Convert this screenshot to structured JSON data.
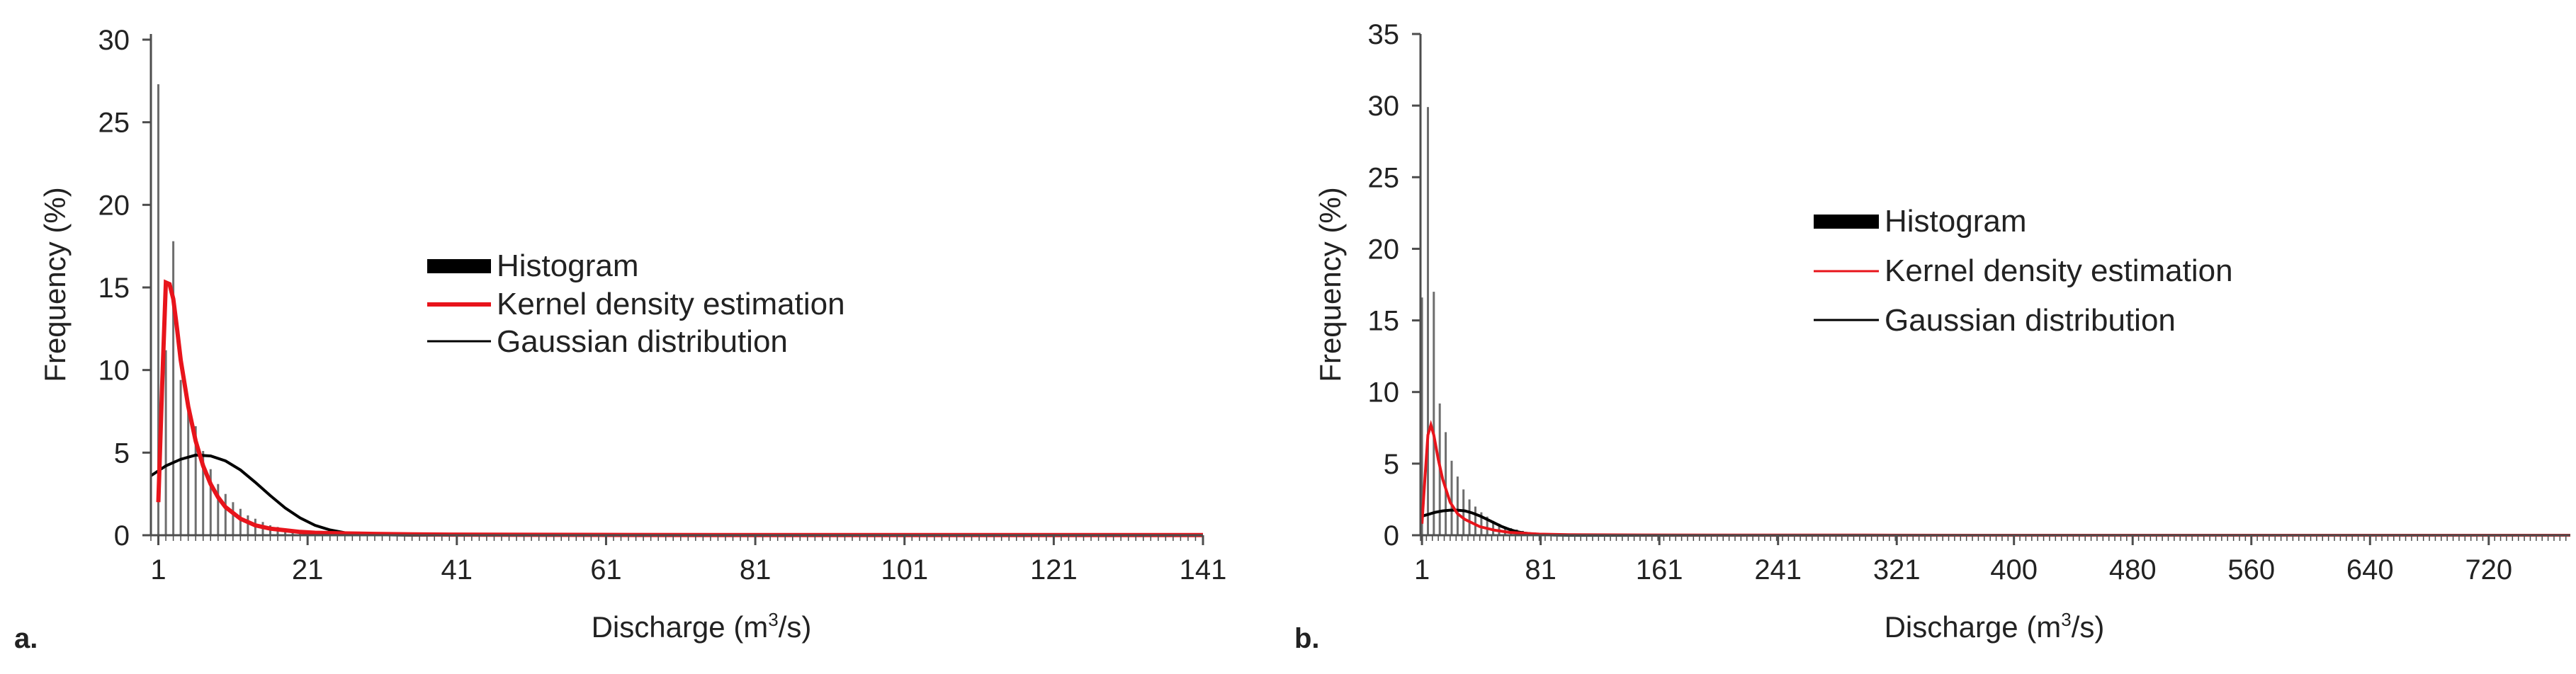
{
  "chart_data": [
    {
      "type": "bar",
      "panel_label": "a.",
      "xlabel": "Discharge (m³/s)",
      "xlabel_main": "Discharge (m",
      "xlabel_sup": "3",
      "xlabel_tail": "/s)",
      "ylabel": "Frequency (%)",
      "xlim": [
        0,
        141
      ],
      "ylim": [
        0,
        30
      ],
      "yticks": [
        "0",
        "5",
        "10",
        "15",
        "20",
        "25",
        "30"
      ],
      "xticks": [
        {
          "value": 1,
          "label": "1"
        },
        {
          "value": 21,
          "label": "21"
        },
        {
          "value": 41,
          "label": "41"
        },
        {
          "value": 61,
          "label": "61"
        },
        {
          "value": 81,
          "label": "81"
        },
        {
          "value": 101,
          "label": "101"
        },
        {
          "value": 121,
          "label": "121"
        },
        {
          "value": 141,
          "label": "141"
        }
      ],
      "grid": false,
      "legend_position": "center",
      "legend": [
        {
          "label": "Histogram",
          "style": "bar",
          "color": "#000000"
        },
        {
          "label": "Kernel density estimation",
          "style": "line",
          "color": "#e8141b"
        },
        {
          "label": "Gaussian distribution",
          "style": "line",
          "color": "#000000"
        }
      ],
      "histogram": {
        "bin_width": 1,
        "x": [
          1,
          2,
          3,
          4,
          5,
          6,
          7,
          8,
          9,
          10,
          11,
          12,
          13,
          14,
          15,
          16,
          17,
          18,
          19,
          20,
          21,
          22,
          23,
          24,
          25,
          26,
          27,
          28,
          29,
          30
        ],
        "values": [
          27.3,
          11.2,
          17.8,
          9.4,
          7.9,
          6.6,
          5.1,
          4.0,
          3.1,
          2.5,
          2.0,
          1.6,
          1.2,
          1.0,
          0.8,
          0.6,
          0.5,
          0.4,
          0.3,
          0.3,
          0.2,
          0.2,
          0.2,
          0.1,
          0.1,
          0.1,
          0.1,
          0.1,
          0.1,
          0.1
        ]
      },
      "series": [
        {
          "name": "Kernel density estimation",
          "color": "#e8141b",
          "x": [
            1,
            1.5,
            2,
            2.5,
            3,
            3.5,
            4,
            5,
            6,
            7,
            8,
            9,
            10,
            12,
            14,
            16,
            18,
            20,
            22,
            25,
            30,
            35,
            40,
            60,
            80,
            100,
            120,
            141
          ],
          "y": [
            2.0,
            9.0,
            15.3,
            15.2,
            14.3,
            12.5,
            10.6,
            7.8,
            5.7,
            4.2,
            3.1,
            2.3,
            1.7,
            1.0,
            0.6,
            0.4,
            0.3,
            0.2,
            0.15,
            0.12,
            0.08,
            0.05,
            0.04,
            0.02,
            0.01,
            0.01,
            0.01,
            0.01
          ]
        },
        {
          "name": "Gaussian distribution",
          "color": "#000000",
          "x": [
            0,
            2,
            4,
            6,
            8,
            10,
            12,
            14,
            16,
            18,
            20,
            22,
            24,
            26,
            30,
            35,
            40,
            60,
            80,
            100,
            120,
            141
          ],
          "y": [
            3.6,
            4.2,
            4.6,
            4.85,
            4.8,
            4.5,
            3.95,
            3.2,
            2.4,
            1.65,
            1.05,
            0.6,
            0.32,
            0.15,
            0.03,
            0.0,
            0.0,
            0.0,
            0.0,
            0.0,
            0.0,
            0.0
          ]
        }
      ]
    },
    {
      "type": "bar",
      "panel_label": "b.",
      "xlabel": "Discharge (m³/s)",
      "xlabel_main": "Discharge (m",
      "xlabel_sup": "3",
      "xlabel_tail": "/s)",
      "ylabel": "Frequency (%)",
      "xlim": [
        0,
        775
      ],
      "ylim": [
        0,
        35
      ],
      "yticks": [
        "0",
        "5",
        "10",
        "15",
        "20",
        "25",
        "30",
        "35"
      ],
      "xticks": [
        {
          "value": 1,
          "label": "1"
        },
        {
          "value": 81,
          "label": "81"
        },
        {
          "value": 161,
          "label": "161"
        },
        {
          "value": 241,
          "label": "241"
        },
        {
          "value": 321,
          "label": "321"
        },
        {
          "value": 400,
          "label": "400"
        },
        {
          "value": 480,
          "label": "480"
        },
        {
          "value": 560,
          "label": "560"
        },
        {
          "value": 640,
          "label": "640"
        },
        {
          "value": 720,
          "label": "720"
        }
      ],
      "grid": false,
      "legend_position": "upper-center",
      "legend": [
        {
          "label": "Histogram",
          "style": "bar",
          "color": "#000000"
        },
        {
          "label": "Kernel density estimation",
          "style": "line",
          "color": "#e8141b"
        },
        {
          "label": "Gaussian distribution",
          "style": "line",
          "color": "#000000"
        }
      ],
      "histogram": {
        "bin_width": 4,
        "x": [
          1,
          5,
          9,
          13,
          17,
          21,
          25,
          29,
          33,
          37,
          41,
          45,
          49,
          53,
          57,
          61,
          65,
          69,
          73,
          77,
          81,
          85,
          89,
          93,
          97
        ],
        "values": [
          16.6,
          29.9,
          17.0,
          9.2,
          7.2,
          5.2,
          4.1,
          3.2,
          2.5,
          2.0,
          1.6,
          1.3,
          1.0,
          0.8,
          0.6,
          0.5,
          0.4,
          0.3,
          0.2,
          0.2,
          0.1,
          0.1,
          0.1,
          0.1,
          0.1
        ]
      },
      "series": [
        {
          "name": "Kernel density estimation",
          "color": "#e8141b",
          "x": [
            1,
            3,
            5,
            7,
            9,
            12,
            15,
            20,
            25,
            30,
            40,
            50,
            60,
            80,
            100,
            150,
            200,
            300,
            400,
            500,
            600,
            700,
            775
          ],
          "y": [
            0.8,
            4.0,
            7.0,
            7.7,
            7.0,
            5.3,
            3.9,
            2.3,
            1.5,
            1.1,
            0.6,
            0.35,
            0.2,
            0.08,
            0.04,
            0.02,
            0.01,
            0.01,
            0.0,
            0.0,
            0.0,
            0.0,
            0.0
          ]
        },
        {
          "name": "Gaussian distribution",
          "color": "#000000",
          "x": [
            0,
            5,
            10,
            15,
            20,
            25,
            30,
            35,
            40,
            45,
            50,
            55,
            60,
            65,
            70,
            80,
            90,
            100,
            150,
            300,
            500,
            775
          ],
          "y": [
            1.3,
            1.45,
            1.6,
            1.7,
            1.75,
            1.75,
            1.7,
            1.55,
            1.35,
            1.1,
            0.85,
            0.6,
            0.4,
            0.25,
            0.15,
            0.05,
            0.01,
            0.0,
            0.0,
            0.0,
            0.0,
            0.0
          ]
        }
      ]
    }
  ]
}
